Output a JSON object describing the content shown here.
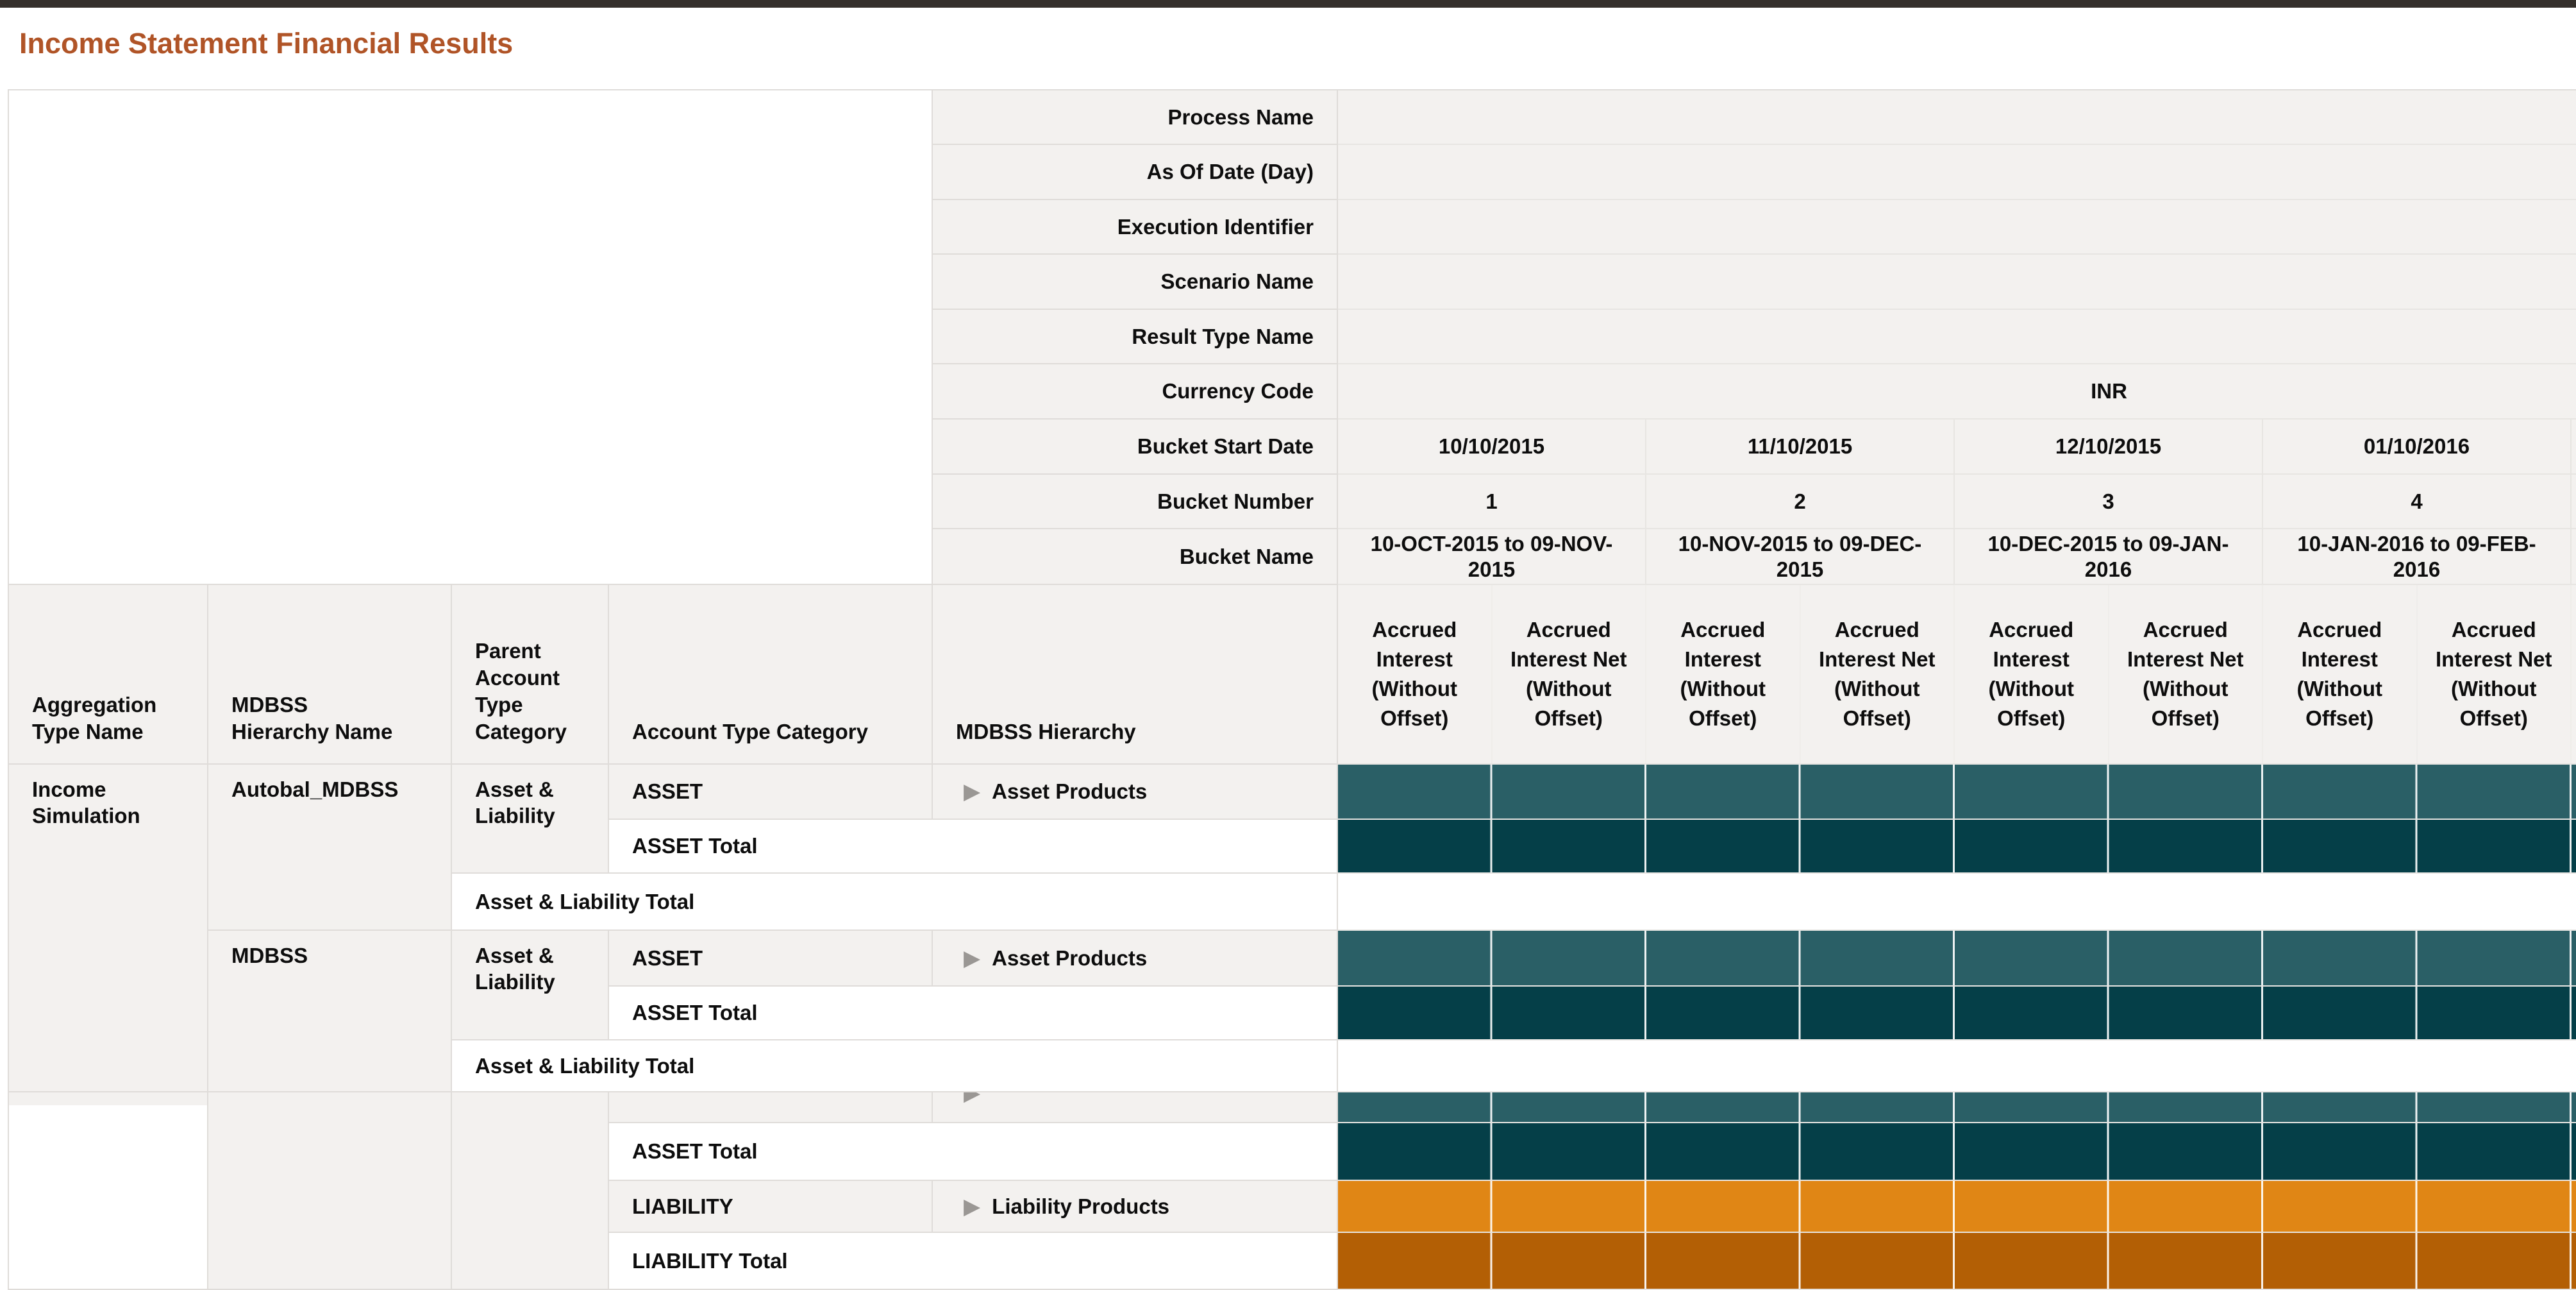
{
  "title": "Income Statement Financial Results",
  "icons": {
    "expand_arrow": "▶"
  },
  "colors": {
    "accent": "#B05427",
    "topbar": "#35302C",
    "cell-gray": "#F3F1EF",
    "grid-line": "#DFDCD9",
    "grid-line-soft": "#E7E5E2",
    "teal": "#2A5F66",
    "teal-dark": "#053F48",
    "orange": "#E08615",
    "orange-dark": "#B35F05",
    "arrow-gray": "#9A9794",
    "text": "#0D0D0D"
  },
  "summary": {
    "labels": [
      "Process Name",
      "As Of Date (Day)",
      "Execution Identifier",
      "Scenario Name",
      "Result Type Name",
      "Currency Code",
      "Bucket Start Date",
      "Bucket Number",
      "Bucket Name"
    ],
    "currency_value": "INR",
    "buckets": [
      {
        "start_date": "10/10/2015",
        "number": "1",
        "name": "10-OCT-2015 to 09-NOV-2015"
      },
      {
        "start_date": "11/10/2015",
        "number": "2",
        "name": "10-NOV-2015 to 09-DEC-2015"
      },
      {
        "start_date": "12/10/2015",
        "number": "3",
        "name": "10-DEC-2015 to 09-JAN-2016"
      },
      {
        "start_date": "01/10/2016",
        "number": "4",
        "name": "10-JAN-2016 to 09-FEB-2016"
      }
    ]
  },
  "table": {
    "column_headers": [
      "Aggregation Type Name",
      "MDBSS Hierarchy Name",
      "Parent Account Type Category",
      "Account Type Category",
      "MDBSS Hierarchy"
    ],
    "measure_headers": [
      "Accrued Interest (Without Offset)",
      "Accrued Interest Net (Without Offset)",
      "Accrued Interest (Without Offset)",
      "Accrued Interest Net (Without Offset)",
      "Accrued Interest (Without Offset)",
      "Accrued Interest Net (Without Offset)",
      "Accrued Interest (Without Offset)",
      "Accrued Interest Net (Without Offset)"
    ],
    "aggregation_type": "Income Simulation",
    "hierarchies": [
      {
        "name": "Autobal_MDBSS",
        "parent_category": "Asset & Liability",
        "account_type": "ASSET",
        "account_hierarchy": "Asset Products",
        "account_total": "ASSET Total",
        "parent_total": "Asset & Liability Total"
      },
      {
        "name": "MDBSS",
        "parent_category": "Asset & Liability",
        "account_type": "ASSET",
        "account_hierarchy": "Asset Products",
        "account_total": "ASSET Total",
        "parent_total": "Asset & Liability Total"
      }
    ],
    "bottom_pane": {
      "asset_total": "ASSET Total",
      "liability_account_type": "LIABILITY",
      "liability_hierarchy": "Liability Products",
      "liability_total": "LIABILITY Total"
    }
  }
}
